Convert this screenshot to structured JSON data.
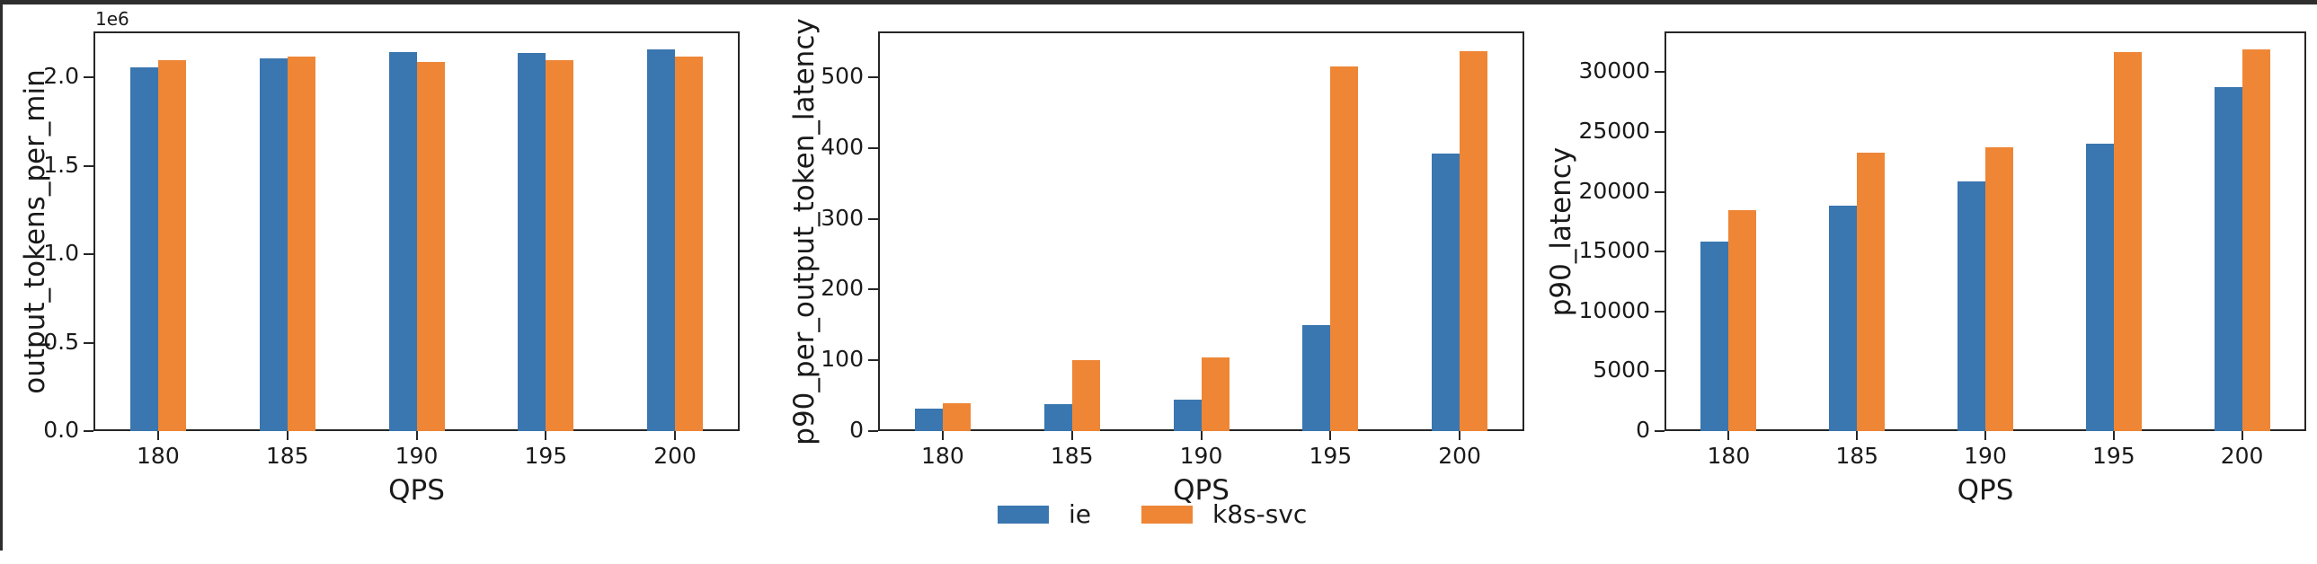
{
  "figure": {
    "background": "#ffffff",
    "frame_color": "#262626",
    "text_color": "#1a1a1a",
    "top_strip_color": "#2e2e2e",
    "left_strip_color": "#2e2e2e"
  },
  "legend": {
    "position": "bottom-center",
    "entries": [
      {
        "label": "ie",
        "color": "#3A76AF"
      },
      {
        "label": "k8s-svc",
        "color": "#EE8636"
      }
    ]
  },
  "chart_data": [
    {
      "type": "bar",
      "title": "",
      "xlabel": "QPS",
      "ylabel": "output_tokens_per_min",
      "offset_text": "1e6",
      "categories": [
        "180",
        "185",
        "190",
        "195",
        "200"
      ],
      "series": [
        {
          "name": "ie",
          "color": "#3A76AF",
          "values": [
            2055000,
            2110000,
            2145000,
            2140000,
            2160000
          ]
        },
        {
          "name": "k8s-svc",
          "color": "#EE8636",
          "values": [
            2095000,
            2120000,
            2085000,
            2095000,
            2120000
          ]
        }
      ],
      "ylim": [
        0,
        2260000
      ],
      "yticks": [
        0,
        500000,
        1000000,
        1500000,
        2000000
      ],
      "ytick_labels": [
        "0.0",
        "0.5",
        "1.0",
        "1.5",
        "2.0"
      ],
      "grid": false
    },
    {
      "type": "bar",
      "title": "",
      "xlabel": "QPS",
      "ylabel": "p90_per_output_token_latency",
      "offset_text": "",
      "categories": [
        "180",
        "185",
        "190",
        "195",
        "200"
      ],
      "series": [
        {
          "name": "ie",
          "color": "#3A76AF",
          "values": [
            32,
            38,
            44,
            150,
            392
          ]
        },
        {
          "name": "k8s-svc",
          "color": "#EE8636",
          "values": [
            39,
            100,
            104,
            515,
            537
          ]
        }
      ],
      "ylim": [
        0,
        565
      ],
      "yticks": [
        0,
        100,
        200,
        300,
        400,
        500
      ],
      "ytick_labels": [
        "0",
        "100",
        "200",
        "300",
        "400",
        "500"
      ],
      "grid": false
    },
    {
      "type": "bar",
      "title": "",
      "xlabel": "QPS",
      "ylabel": "p90_latency",
      "offset_text": "",
      "categories": [
        "180",
        "185",
        "190",
        "195",
        "200"
      ],
      "series": [
        {
          "name": "ie",
          "color": "#3A76AF",
          "values": [
            15800,
            18850,
            20900,
            24000,
            28750
          ]
        },
        {
          "name": "k8s-svc",
          "color": "#EE8636",
          "values": [
            18450,
            23300,
            23750,
            31650,
            31900
          ]
        }
      ],
      "ylim": [
        0,
        33400
      ],
      "yticks": [
        0,
        5000,
        10000,
        15000,
        20000,
        25000,
        30000
      ],
      "ytick_labels": [
        "0",
        "5000",
        "10000",
        "15000",
        "20000",
        "25000",
        "30000"
      ],
      "grid": false
    }
  ]
}
